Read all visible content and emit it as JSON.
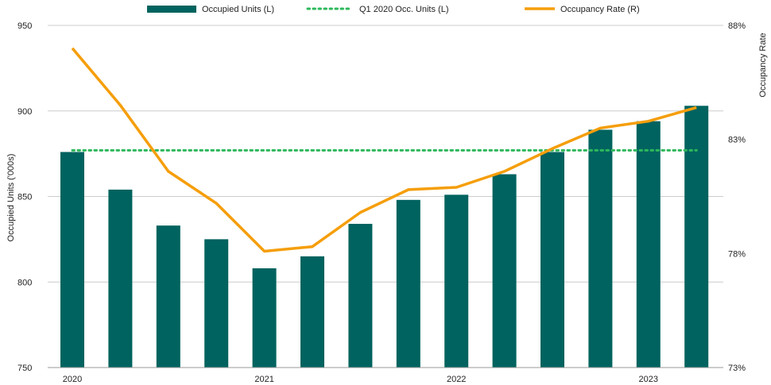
{
  "chart_data": {
    "type": "bar",
    "x": [
      "2020 Q1",
      "2020 Q2",
      "2020 Q3",
      "2020 Q4",
      "2021 Q1",
      "2021 Q2",
      "2021 Q3",
      "2021 Q4",
      "2022 Q1",
      "2022 Q2",
      "2022 Q3",
      "2022 Q4",
      "2023 Q1",
      "2023 Q2"
    ],
    "tick_labels": [
      "2020",
      "2021",
      "2022",
      "2023"
    ],
    "tick_positions": [
      0,
      4,
      8,
      12
    ],
    "series": [
      {
        "name": "Occupied Units (L)",
        "type": "bar",
        "axis": "left",
        "color": "#00635f",
        "values": [
          876,
          854,
          833,
          825,
          808,
          815,
          834,
          848,
          851,
          863,
          876,
          889,
          894,
          903
        ]
      },
      {
        "name": "Q1 2020 Occ. Units (L)",
        "type": "line",
        "style": "dotted",
        "axis": "left",
        "color": "#2db85b",
        "values": [
          877,
          877,
          877,
          877,
          877,
          877,
          877,
          877,
          877,
          877,
          877,
          877,
          877,
          877
        ]
      },
      {
        "name": "Occupancy Rate (R)",
        "type": "line",
        "axis": "right",
        "color": "#f59e0b",
        "values": [
          87.0,
          84.5,
          81.6,
          80.2,
          78.1,
          78.3,
          79.8,
          80.8,
          80.9,
          81.6,
          82.6,
          83.5,
          83.8,
          84.4
        ]
      }
    ],
    "ylabel": "Occupied Units ('000s)",
    "ylim": [
      750,
      950
    ],
    "yticks": [
      "750",
      "800",
      "850",
      "900",
      "950"
    ],
    "y2label": "Occupancy Rate",
    "y2lim": [
      73,
      88
    ],
    "y2ticks": [
      "73%",
      "78%",
      "83%",
      "88%"
    ],
    "grid": true,
    "legend_position": "top"
  }
}
